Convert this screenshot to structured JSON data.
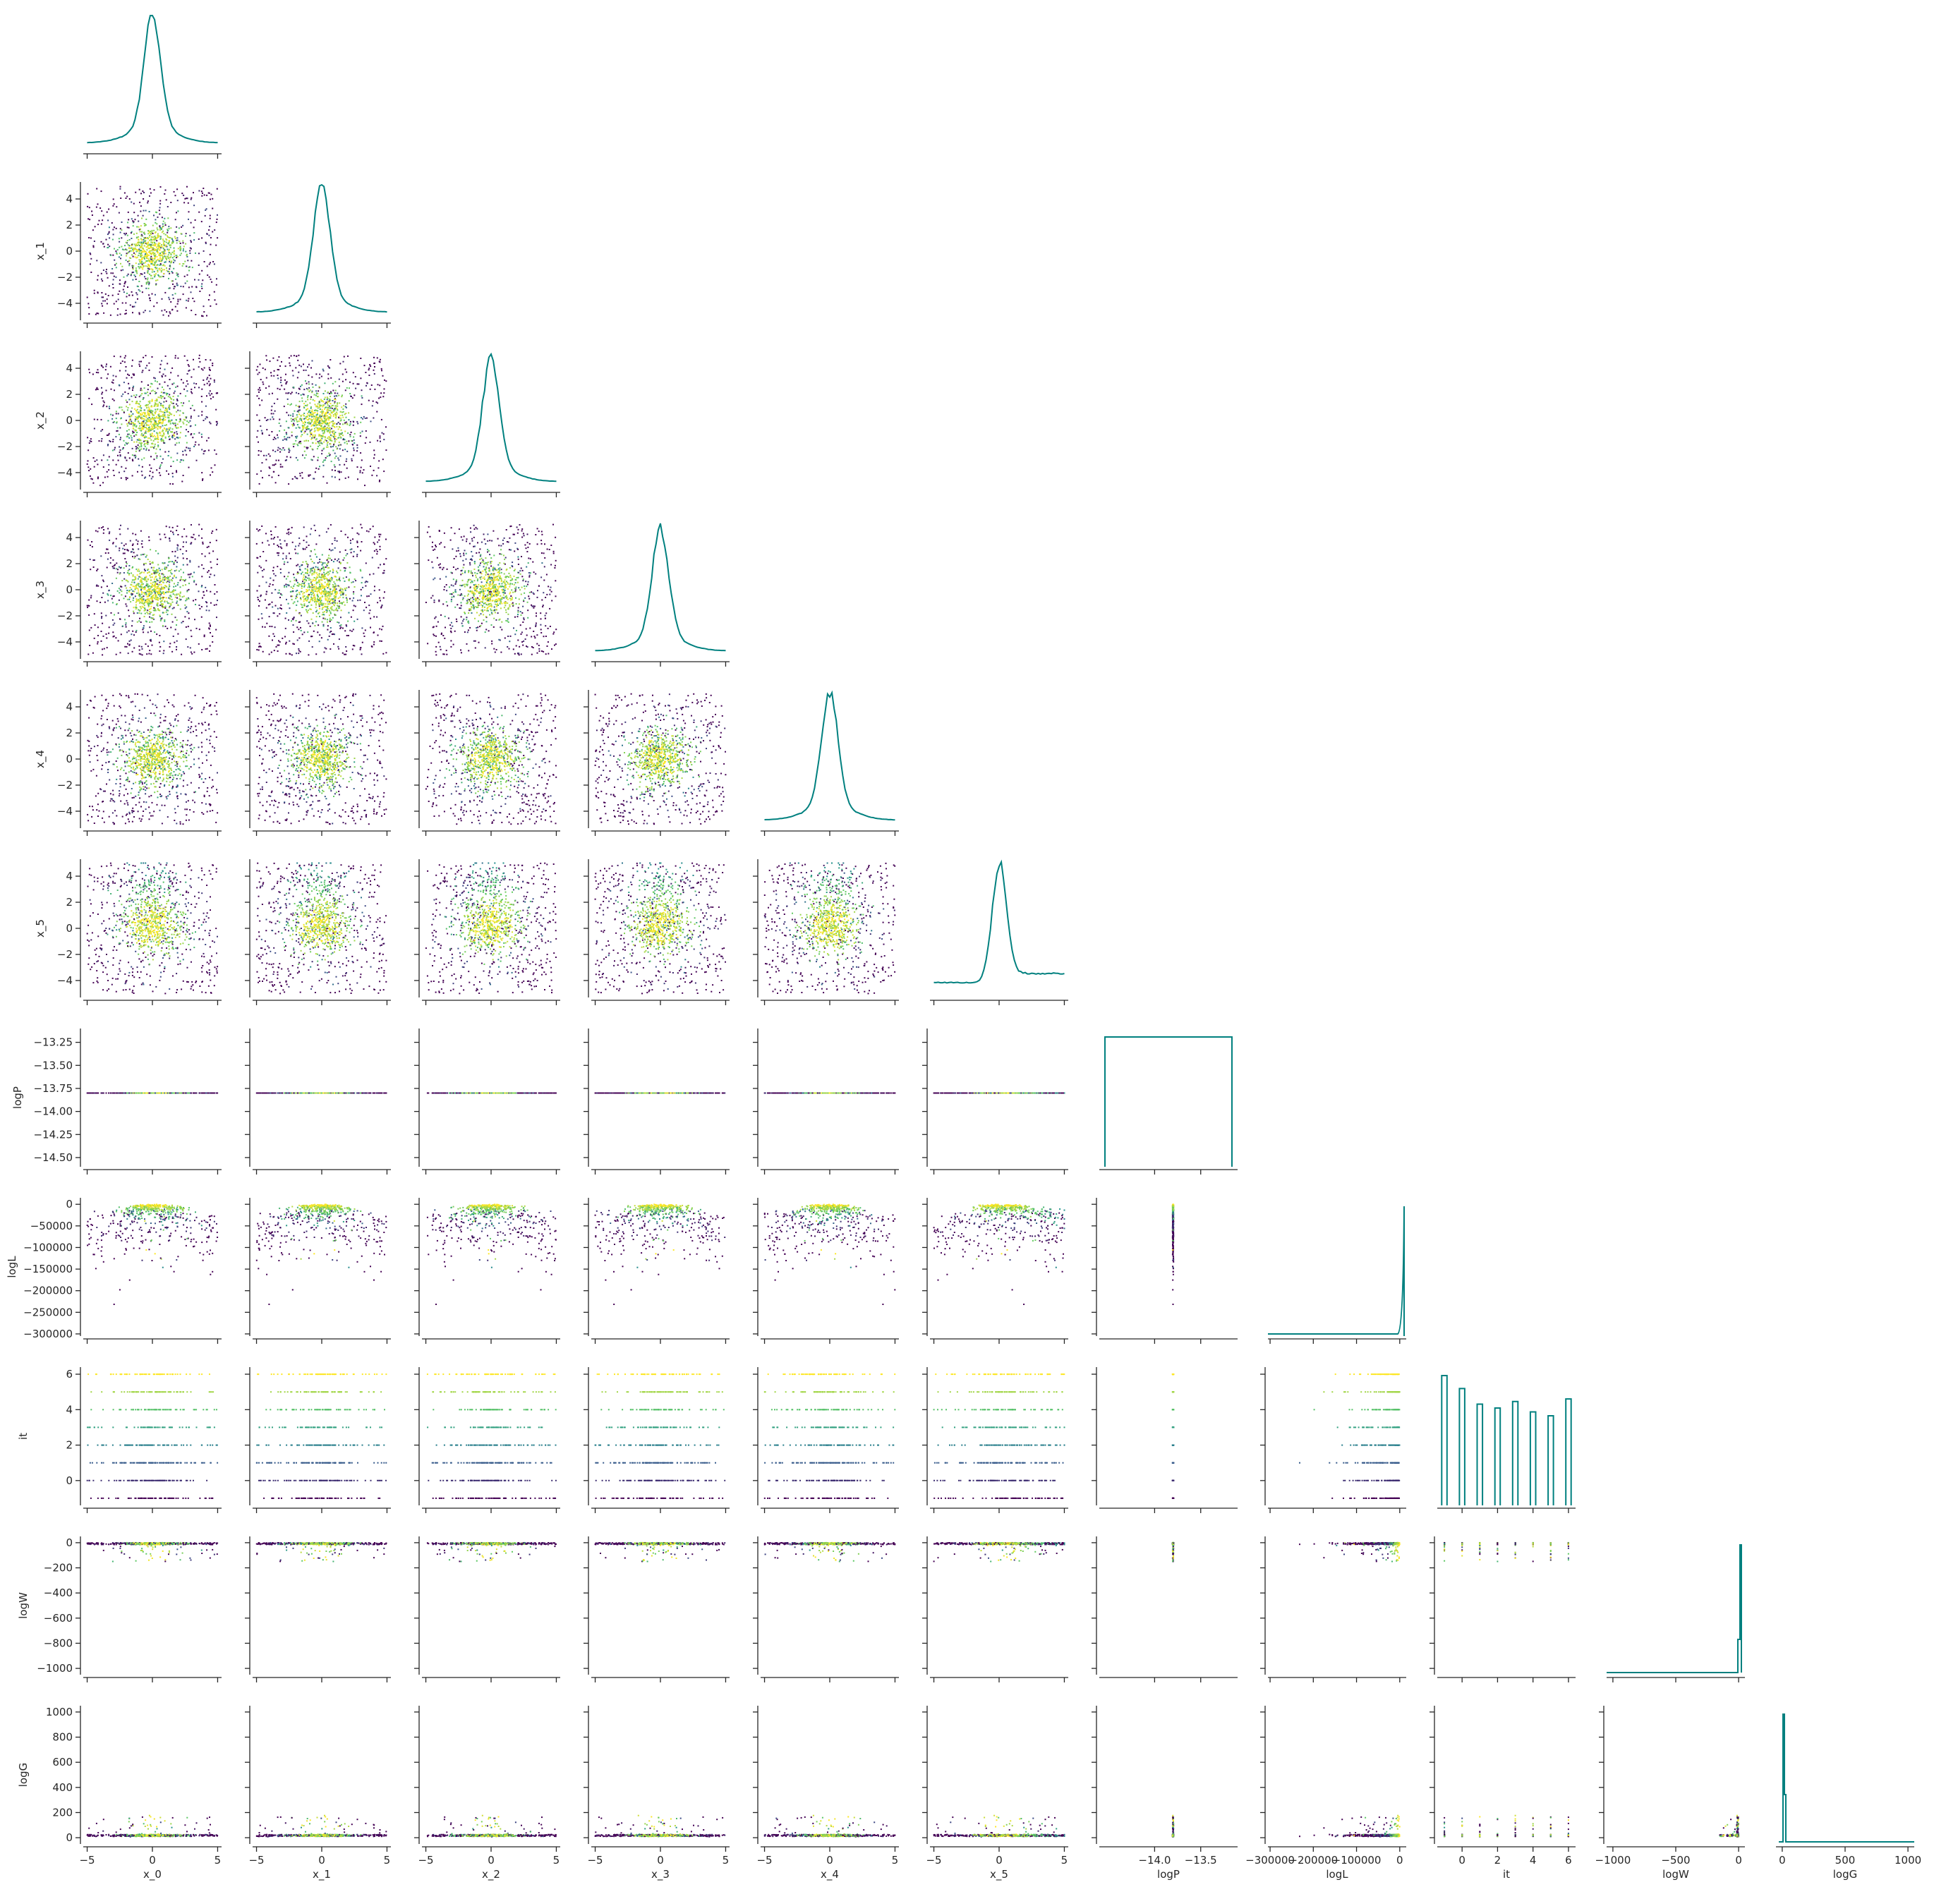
{
  "colors": {
    "histogram": "#00807f",
    "scatter_colormap": [
      "#440154",
      "#3b528b",
      "#21918c",
      "#5ec962",
      "#fde725"
    ]
  },
  "chart_data": {
    "type": "scatter",
    "layout": "corner-plot",
    "variables": [
      "x_0",
      "x_1",
      "x_2",
      "x_3",
      "x_4",
      "x_5",
      "logP",
      "logL",
      "it",
      "logW",
      "logG"
    ],
    "axes": {
      "x_0": {
        "range": [
          -5.3,
          5.3
        ],
        "ticks": [
          -5,
          0,
          5
        ],
        "tick_labels": [
          "−5",
          "0",
          "5"
        ]
      },
      "x_1": {
        "range": [
          -5.3,
          5.3
        ],
        "ticks": [
          -5,
          0,
          5
        ],
        "tick_labels": [
          "−5",
          "0",
          "5"
        ],
        "y_ticks": [
          -4,
          -2,
          0,
          2,
          4
        ],
        "y_tick_labels": [
          "−4",
          "−2",
          "0",
          "2",
          "4"
        ]
      },
      "x_2": {
        "range": [
          -5.3,
          5.3
        ],
        "ticks": [
          -5,
          0,
          5
        ],
        "tick_labels": [
          "−5",
          "0",
          "5"
        ],
        "y_ticks": [
          -4,
          -2,
          0,
          2,
          4
        ],
        "y_tick_labels": [
          "−4",
          "−2",
          "0",
          "2",
          "4"
        ]
      },
      "x_3": {
        "range": [
          -5.3,
          5.3
        ],
        "ticks": [
          -5,
          0,
          5
        ],
        "tick_labels": [
          "−5",
          "0",
          "5"
        ],
        "y_ticks": [
          -4,
          -2,
          0,
          2,
          4
        ],
        "y_tick_labels": [
          "−4",
          "−2",
          "0",
          "2",
          "4"
        ]
      },
      "x_4": {
        "range": [
          -5.3,
          5.3
        ],
        "ticks": [
          -5,
          0,
          5
        ],
        "tick_labels": [
          "−5",
          "0",
          "5"
        ],
        "y_ticks": [
          -4,
          -2,
          0,
          2,
          4
        ],
        "y_tick_labels": [
          "−4",
          "−2",
          "0",
          "2",
          "4"
        ]
      },
      "x_5": {
        "range": [
          -5.3,
          5.3
        ],
        "ticks": [
          -5,
          0,
          5
        ],
        "tick_labels": [
          "−5",
          "0",
          "5"
        ],
        "y_ticks": [
          -4,
          -2,
          0,
          2,
          4
        ],
        "y_tick_labels": [
          "−4",
          "−2",
          "0",
          "2",
          "4"
        ]
      },
      "logP": {
        "range": [
          -14.6,
          -13.1
        ],
        "ticks": [
          -14.0,
          -13.5
        ],
        "tick_labels": [
          "−14.0",
          "−13.5"
        ],
        "y_ticks": [
          -14.5,
          -14.25,
          -14.0,
          -13.75,
          -13.5,
          -13.25
        ],
        "y_tick_labels": [
          "−14.50",
          "−14.25",
          "−14.00",
          "−13.75",
          "−13.50",
          "−13.25"
        ]
      },
      "logL": {
        "range": [
          -305000,
          15000
        ],
        "ticks": [
          -300000,
          -200000,
          -100000,
          0
        ],
        "tick_labels": [
          "−300000",
          "−200000",
          "−100000",
          "0"
        ],
        "y_ticks": [
          -300000,
          -250000,
          -200000,
          -150000,
          -100000,
          -50000,
          0
        ],
        "y_tick_labels": [
          "−300000",
          "−250000",
          "−200000",
          "−150000",
          "−100000",
          "−50000",
          "0"
        ]
      },
      "it": {
        "range": [
          -1.4,
          6.4
        ],
        "ticks": [
          0,
          2,
          4,
          6
        ],
        "tick_labels": [
          "0",
          "2",
          "4",
          "6"
        ],
        "y_ticks": [
          0,
          2,
          4,
          6
        ],
        "y_tick_labels": [
          "0",
          "2",
          "4",
          "6"
        ]
      },
      "logW": {
        "range": [
          -1050,
          50
        ],
        "ticks": [
          -1000,
          -500,
          0
        ],
        "tick_labels": [
          "−1000",
          "−500",
          "0"
        ],
        "y_ticks": [
          -1000,
          -800,
          -600,
          -400,
          -200,
          0
        ],
        "y_tick_labels": [
          "−1000",
          "−800",
          "−600",
          "−400",
          "−200",
          "0"
        ]
      },
      "logG": {
        "range": [
          -50,
          1050
        ],
        "ticks": [
          0,
          500,
          1000
        ],
        "tick_labels": [
          "0",
          "500",
          "1000"
        ],
        "y_ticks": [
          0,
          200,
          400,
          600,
          800,
          1000
        ],
        "y_tick_labels": [
          "0",
          "200",
          "400",
          "600",
          "800",
          "1000"
        ]
      }
    },
    "it_histogram": {
      "x": [
        -1,
        0,
        1,
        2,
        3,
        4,
        5,
        6
      ],
      "relative_heights": [
        1.0,
        0.9,
        0.78,
        0.75,
        0.8,
        0.72,
        0.69,
        0.82
      ]
    },
    "logP_value": -13.8,
    "grid": false,
    "legend": "none"
  }
}
